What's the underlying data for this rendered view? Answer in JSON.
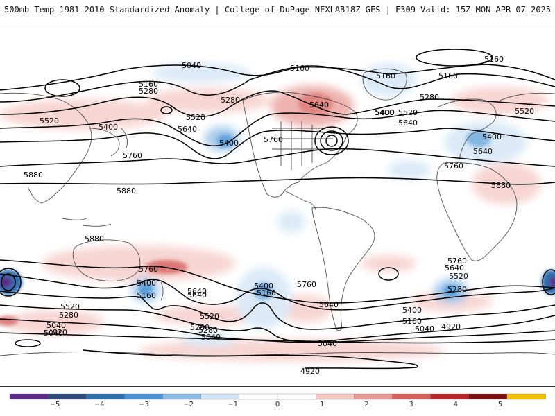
{
  "header": {
    "left": "500mb Temp 1981-2010 Standardized Anomaly | College of DuPage NEXLAB",
    "right": "18Z GFS | F309 Valid: 15Z MON APR 07 2025"
  },
  "contour_labels": [
    "5040",
    "5160",
    "5160",
    "5160",
    "5280",
    "5280",
    "5280",
    "5400",
    "5400",
    "5400",
    "5520",
    "5520",
    "5640",
    "5640",
    "5760",
    "5760",
    "5160",
    "5160",
    "5400",
    "5520",
    "5400",
    "5520",
    "5640",
    "5640",
    "5760",
    "5880",
    "5880",
    "5880",
    "5880",
    "5760",
    "5640",
    "5400",
    "5160",
    "5280",
    "5520",
    "5040",
    "5400",
    "5160",
    "5760",
    "5640",
    "5040",
    "5760",
    "5640",
    "5520",
    "5280",
    "5400",
    "5160",
    "5040",
    "4920",
    "5040",
    "5280",
    "5520",
    "5280",
    "5040",
    "4920",
    "4920",
    "5640"
  ],
  "colorbar": {
    "ticks": [
      "−5",
      "−4",
      "−3",
      "−2",
      "−1",
      "0",
      "1",
      "2",
      "3",
      "4",
      "5"
    ],
    "colors": [
      "#5b2a86",
      "#2c4a7a",
      "#2f6fb0",
      "#4a92d6",
      "#8cbbe6",
      "#cfe3f4",
      "#ffffff",
      "#ffffff",
      "#f4c8c4",
      "#e89a96",
      "#d6605c",
      "#b8252a",
      "#7a1010",
      "#f0c000"
    ]
  }
}
